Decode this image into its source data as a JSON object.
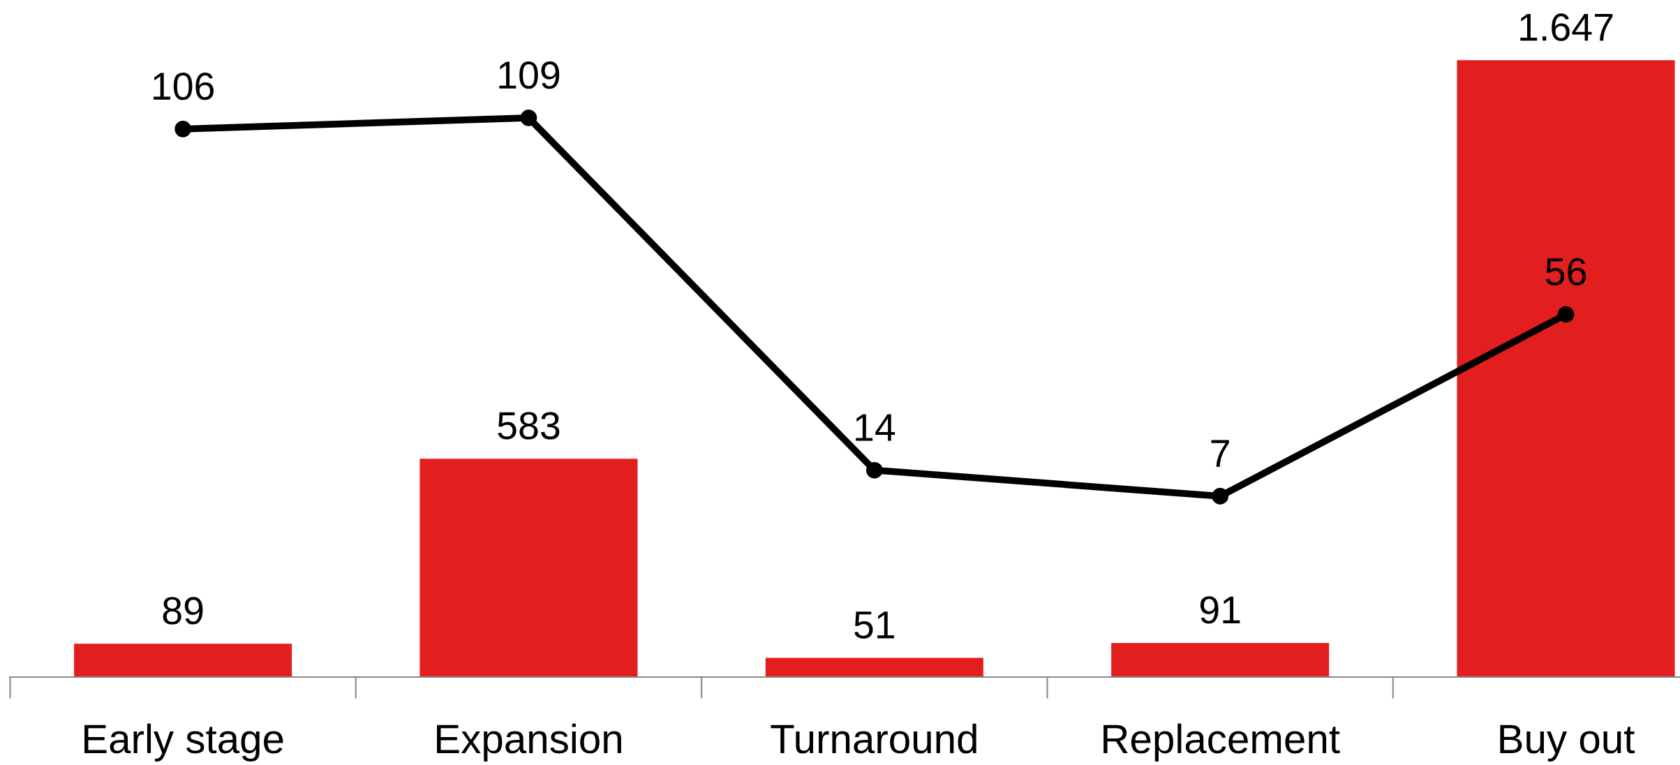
{
  "chart_data": {
    "type": "bar",
    "categories": [
      "Early stage",
      "Expansion",
      "Turnaround",
      "Replacement",
      "Buy out"
    ],
    "series": [
      {
        "color": "#e31e1e",
        "values": [
          89,
          583,
          51,
          91,
          1647
        ],
        "value_labels": [
          "89",
          "583",
          "51",
          "91",
          "1.647"
        ]
      },
      {
        "type": "line",
        "axis": "y2",
        "color": "#000000",
        "values": [
          106,
          109,
          14,
          7,
          56
        ]
      }
    ],
    "data_labels": true,
    "tick_labels": "x",
    "marker": "circle",
    "line_style": "solid"
  }
}
